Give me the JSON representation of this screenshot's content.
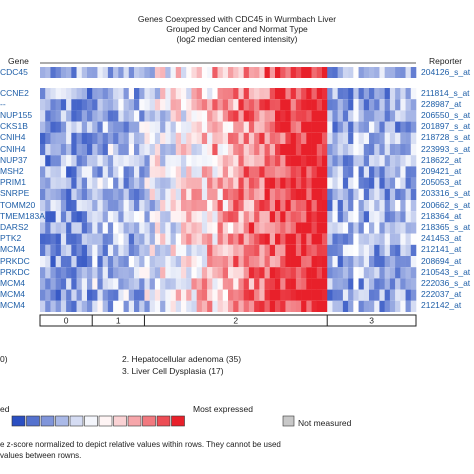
{
  "title": {
    "line1": "Genes Coexpressed with CDC45 in Wurmbach Liver",
    "line2": "Grouped by Cancer and Normat Type",
    "line3": "(log2 median centered intensity)"
  },
  "headers": {
    "gene": "Gene",
    "reporter": "Reporter"
  },
  "chart_data": {
    "type": "heatmap",
    "title": "Genes Coexpressed with CDC45 in Wurmbach Liver",
    "subtitle": "Grouped by Cancer and Normat Type (log2 median centered intensity)",
    "query_row": {
      "gene": "CDC45",
      "reporter": "204126_s_at"
    },
    "rows": [
      {
        "gene": "CCNE2",
        "reporter": "211814_s_at"
      },
      {
        "gene": "--",
        "reporter": "228987_at"
      },
      {
        "gene": "NUP155",
        "reporter": "206550_s_at"
      },
      {
        "gene": "CKS1B",
        "reporter": "201897_s_at"
      },
      {
        "gene": "CNIH4",
        "reporter": "218728_s_at"
      },
      {
        "gene": "CNIH4",
        "reporter": "223993_s_at"
      },
      {
        "gene": "NUP37",
        "reporter": "218622_at"
      },
      {
        "gene": "MSH2",
        "reporter": "209421_at"
      },
      {
        "gene": "PRIM1",
        "reporter": "205053_at"
      },
      {
        "gene": "SNRPE",
        "reporter": "203316_s_at"
      },
      {
        "gene": "TOMM20",
        "reporter": "200662_s_at"
      },
      {
        "gene": "TMEM183A",
        "reporter": "218364_at"
      },
      {
        "gene": "DARS2",
        "reporter": "218365_s_at"
      },
      {
        "gene": "PTK2",
        "reporter": "241453_at"
      },
      {
        "gene": "MCM4",
        "reporter": "212141_at"
      },
      {
        "gene": "PRKDC",
        "reporter": "208694_at"
      },
      {
        "gene": "PRKDC",
        "reporter": "210543_s_at"
      },
      {
        "gene": "MCM4",
        "reporter": "222036_s_at"
      },
      {
        "gene": "MCM4",
        "reporter": "222037_at"
      },
      {
        "gene": "MCM4",
        "reporter": "212142_at"
      }
    ],
    "groups": [
      {
        "label": "0",
        "samples": 10
      },
      {
        "label": "1",
        "samples": 10
      },
      {
        "label": "2",
        "samples": 35
      },
      {
        "label": "3",
        "samples": 17
      }
    ],
    "color_scale": {
      "low": "#2b4fc2",
      "mid": "#ffffff",
      "high": "#e8202a",
      "missing": "#c8c8c8"
    },
    "legend": {
      "group_items": [
        "0)",
        "2. Hepatocellular adenoma (35)",
        "3. Liver Cell Dysplasia (17)"
      ],
      "scale_left": "ed",
      "scale_right": "Most expressed",
      "not_measured": "Not measured"
    },
    "note": {
      "line1": "e z-score normalized to depict relative values within rows. They cannot be used",
      "line2": "values between rowns."
    }
  }
}
